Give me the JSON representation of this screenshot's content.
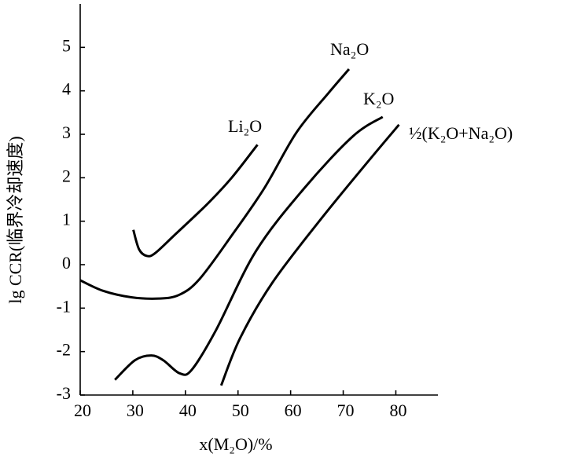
{
  "chart_data": {
    "type": "line",
    "x_label": "x(M₂O)/%",
    "y_label": "lg CCR(临界冷却速度)",
    "xlim": [
      20,
      88
    ],
    "ylim": [
      -3,
      6
    ],
    "xticks": [
      20,
      30,
      40,
      50,
      60,
      70,
      80
    ],
    "yticks": [
      -3,
      -2,
      -1,
      0,
      1,
      2,
      3,
      4,
      5
    ],
    "series": [
      {
        "name": "Li₂O",
        "color": "#000000",
        "x": [
          30.1,
          31.2,
          32.7,
          34.3,
          38.1,
          44.2,
          48.8,
          53.7
        ],
        "values": [
          0.8,
          0.35,
          0.2,
          0.27,
          0.7,
          1.4,
          2.0,
          2.76
        ]
      },
      {
        "name": "Na₂O",
        "color": "#000000",
        "x": [
          20,
          24.3,
          29.7,
          35,
          38.9,
          42.7,
          48.8,
          55,
          61.1,
          67.2,
          71.1
        ],
        "values": [
          -0.36,
          -0.6,
          -0.75,
          -0.78,
          -0.69,
          -0.33,
          0.67,
          1.76,
          3.04,
          3.95,
          4.5
        ]
      },
      {
        "name": "K₂O",
        "color": "#000000",
        "x": [
          26.6,
          30.4,
          33.5,
          35.8,
          38.9,
          41.2,
          45.8,
          53.4,
          62.6,
          71.8,
          77.5
        ],
        "values": [
          -2.65,
          -2.2,
          -2.09,
          -2.2,
          -2.5,
          -2.42,
          -1.51,
          0.31,
          1.76,
          2.95,
          3.4
        ]
      },
      {
        "name": "½(K₂O+Na₂O)",
        "color": "#000000",
        "x": [
          46.8,
          50.4,
          56.5,
          65.7,
          74.9,
          80.6
        ],
        "values": [
          -2.78,
          -1.69,
          -0.42,
          1.04,
          2.4,
          3.22
        ]
      }
    ]
  }
}
